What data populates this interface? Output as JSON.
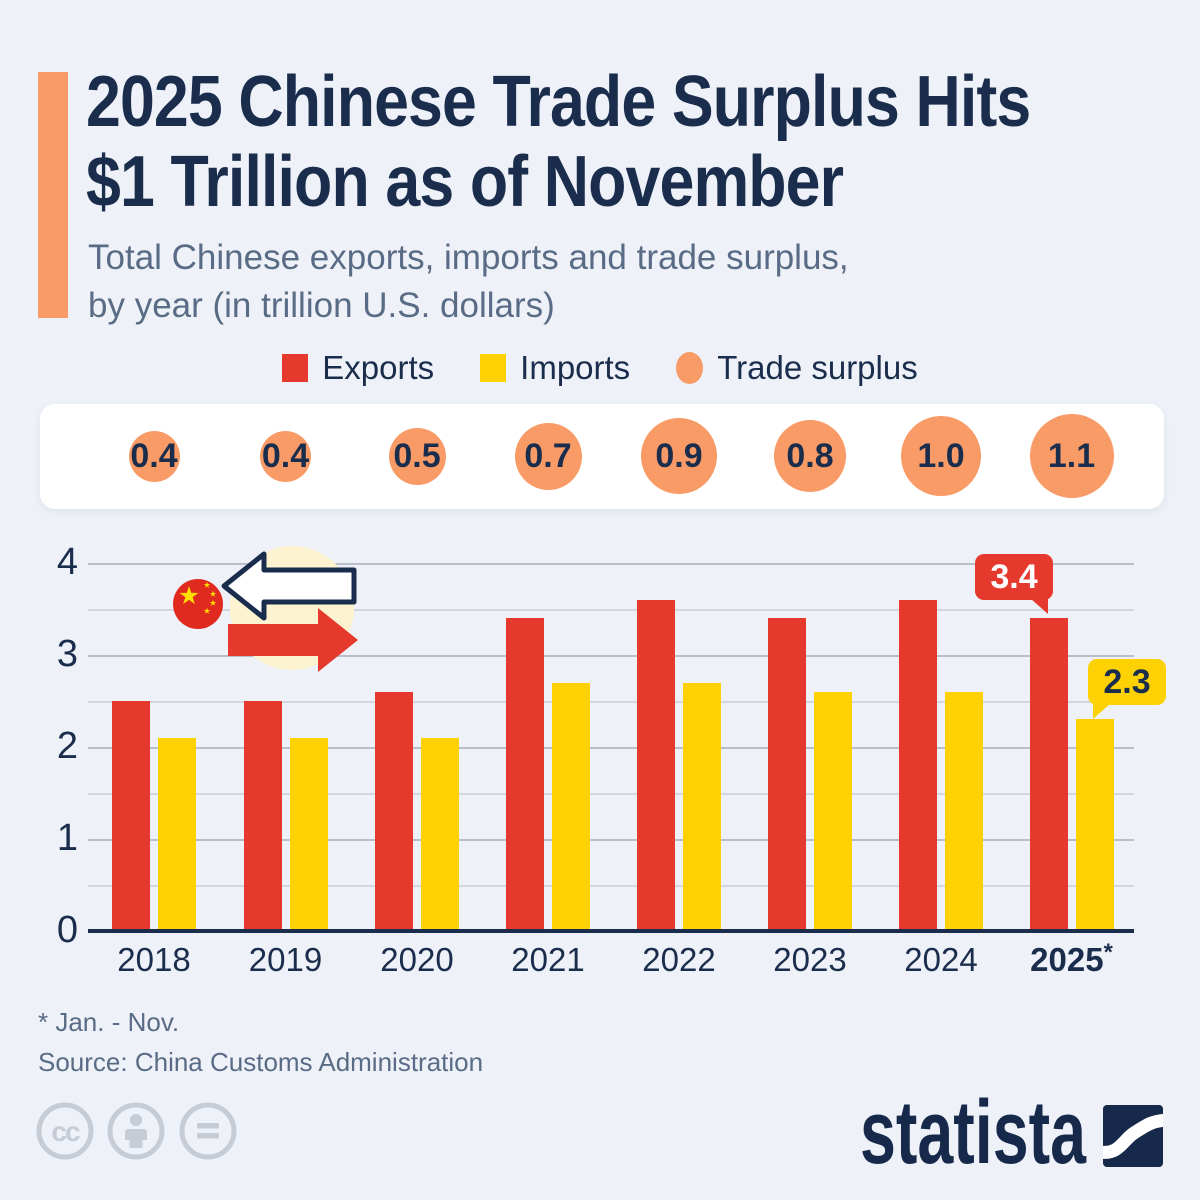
{
  "header": {
    "title_line1": "2025 Chinese Trade Surplus Hits",
    "title_line2": "$1 Trillion as of November",
    "subtitle_line1": "Total Chinese exports, imports and trade surplus,",
    "subtitle_line2": "by year (in trillion U.S. dollars)"
  },
  "legend": [
    {
      "label": "Exports",
      "color": "#e6392e",
      "shape": "square"
    },
    {
      "label": "Imports",
      "color": "#fdd103",
      "shape": "square"
    },
    {
      "label": "Trade surplus",
      "color": "#f89b66",
      "shape": "circle"
    }
  ],
  "chart_data": {
    "type": "bar",
    "title": "2025 Chinese Trade Surplus Hits $1 Trillion as of November",
    "subtitle": "Total Chinese exports, imports and trade surplus, by year (in trillion U.S. dollars)",
    "categories": [
      "2018",
      "2019",
      "2020",
      "2021",
      "2022",
      "2023",
      "2024",
      "2025"
    ],
    "last_category_suffix": "*",
    "series": [
      {
        "name": "Exports",
        "color": "#e6392e",
        "values": [
          2.5,
          2.5,
          2.6,
          3.4,
          3.6,
          3.4,
          3.6,
          3.4
        ]
      },
      {
        "name": "Imports",
        "color": "#fdd103",
        "values": [
          2.1,
          2.1,
          2.1,
          2.7,
          2.7,
          2.6,
          2.6,
          2.3
        ]
      },
      {
        "name": "Trade surplus",
        "color": "#f89b66",
        "values": [
          0.4,
          0.4,
          0.5,
          0.7,
          0.9,
          0.8,
          1.0,
          1.1
        ]
      }
    ],
    "bubble_labels": [
      "0.4",
      "0.4",
      "0.5",
      "0.7",
      "0.9",
      "0.8",
      "1.0",
      "1.1"
    ],
    "ylim": [
      0,
      4
    ],
    "y_ticks": [
      0,
      1,
      2,
      3,
      4
    ],
    "grid_step": 0.5,
    "grid": true,
    "legend_position": "top",
    "annotations": [
      {
        "series": "Exports",
        "category": "2025",
        "label": "3.4"
      },
      {
        "series": "Imports",
        "category": "2025",
        "label": "2.3"
      }
    ]
  },
  "footer": {
    "footnote": "* Jan. - Nov.",
    "source": "Source: China Customs Administration",
    "brand": "statista",
    "license_icons": [
      "cc-icon",
      "attribution-person-icon",
      "no-derivatives-equals-icon"
    ]
  },
  "colors": {
    "background": "#eef2f8",
    "navy_text": "#1b2d4c",
    "muted_text": "#5a6b85",
    "accent_orange": "#f89b66",
    "exports_red": "#e6392e",
    "imports_yellow": "#fdd103",
    "panel_white": "#ffffff"
  }
}
